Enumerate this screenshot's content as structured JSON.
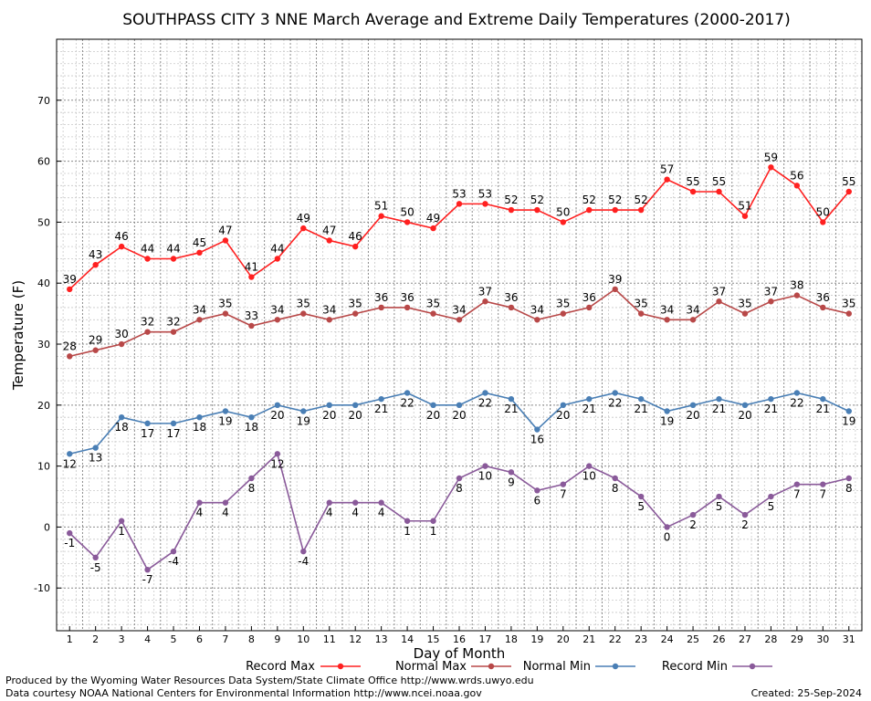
{
  "chart_data": {
    "type": "line",
    "title": "SOUTHPASS CITY 3 NNE March Average and Extreme Daily Temperatures (2000-2017)",
    "xlabel": "Day of Month",
    "ylabel": "Temperature (F)",
    "ylim": [
      -17,
      80
    ],
    "xlim": [
      0.5,
      31.5
    ],
    "yticks": [
      -10,
      0,
      10,
      20,
      30,
      40,
      50,
      60,
      70
    ],
    "x": [
      1,
      2,
      3,
      4,
      5,
      6,
      7,
      8,
      9,
      10,
      11,
      12,
      13,
      14,
      15,
      16,
      17,
      18,
      19,
      20,
      21,
      22,
      23,
      24,
      25,
      26,
      27,
      28,
      29,
      30,
      31
    ],
    "grid": true,
    "legend_position": "bottom",
    "series": [
      {
        "name": "Record Max",
        "color": "#ff2020",
        "label_pos": "above",
        "values": [
          39,
          43,
          46,
          44,
          44,
          45,
          47,
          41,
          44,
          49,
          47,
          46,
          51,
          50,
          49,
          53,
          53,
          52,
          52,
          50,
          52,
          52,
          52,
          57,
          55,
          55,
          51,
          59,
          56,
          50,
          55
        ]
      },
      {
        "name": "Normal Max",
        "color": "#b84848",
        "label_pos": "above",
        "values": [
          28,
          29,
          30,
          32,
          32,
          34,
          35,
          33,
          34,
          35,
          34,
          35,
          36,
          36,
          35,
          34,
          37,
          36,
          34,
          35,
          36,
          39,
          35,
          34,
          34,
          37,
          35,
          37,
          38,
          36,
          35
        ]
      },
      {
        "name": "Normal Min",
        "color": "#4a7fb5",
        "label_pos": "below",
        "values": [
          12,
          13,
          18,
          17,
          17,
          18,
          19,
          18,
          20,
          19,
          20,
          20,
          21,
          22,
          20,
          20,
          22,
          21,
          16,
          20,
          21,
          22,
          21,
          19,
          20,
          21,
          20,
          21,
          22,
          21,
          19
        ]
      },
      {
        "name": "Record Min",
        "color": "#8a5a9a",
        "label_pos": "below",
        "values": [
          -1,
          -5,
          1,
          -7,
          -4,
          4,
          4,
          8,
          12,
          -4,
          4,
          4,
          4,
          1,
          1,
          8,
          10,
          9,
          6,
          7,
          10,
          8,
          5,
          0,
          2,
          5,
          2,
          5,
          7,
          7,
          8
        ]
      }
    ]
  },
  "footer": {
    "line1": "Produced by the Wyoming Water Resources Data System/State Climate Office http://www.wrds.uwyo.edu",
    "line2": "Data courtesy NOAA National Centers for Environmental Information http://www.ncei.noaa.gov",
    "created": "Created:  25-Sep-2024"
  }
}
